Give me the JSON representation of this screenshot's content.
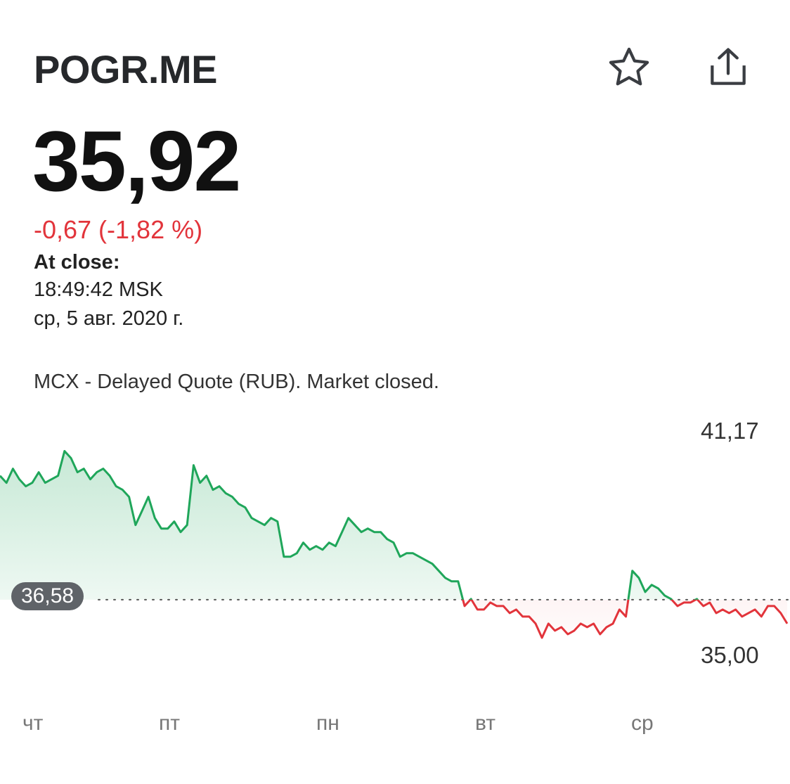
{
  "header": {
    "ticker": "POGR.ME",
    "star_icon": "star-outline-icon",
    "share_icon": "share-icon"
  },
  "quote": {
    "price": "35,92",
    "change": "-0,67 (-1,82 %)",
    "close_label": "At close:",
    "close_time": "18:49:42 MSK",
    "close_date": "ср, 5 авг. 2020 г.",
    "exchange_note": "MCX - Delayed Quote (RUB). Market closed."
  },
  "colors": {
    "up": "#1fa65a",
    "down": "#e2343b",
    "badge": "#5f6368"
  },
  "chart_data": {
    "type": "line",
    "y_max_label": "41,17",
    "y_min_label": "35,00",
    "previous_close_label": "36,58",
    "previous_close": 36.58,
    "ylim": [
      35.0,
      41.17
    ],
    "x_tick_labels": [
      "чт",
      "пт",
      "пн",
      "вт",
      "ср"
    ],
    "values": [
      40.1,
      39.9,
      40.3,
      40.0,
      39.8,
      39.9,
      40.2,
      39.9,
      40.0,
      40.1,
      40.8,
      40.6,
      40.2,
      40.3,
      40.0,
      40.2,
      40.3,
      40.1,
      39.8,
      39.7,
      39.5,
      38.7,
      39.1,
      39.5,
      38.9,
      38.6,
      38.6,
      38.8,
      38.5,
      38.7,
      40.4,
      39.9,
      40.1,
      39.7,
      39.8,
      39.6,
      39.5,
      39.3,
      39.2,
      38.9,
      38.8,
      38.7,
      38.9,
      38.8,
      37.8,
      37.8,
      37.9,
      38.2,
      38.0,
      38.1,
      38.0,
      38.2,
      38.1,
      38.5,
      38.9,
      38.7,
      38.5,
      38.6,
      38.5,
      38.5,
      38.3,
      38.2,
      37.8,
      37.9,
      37.9,
      37.8,
      37.7,
      37.6,
      37.4,
      37.2,
      37.1,
      37.1,
      36.4,
      36.6,
      36.3,
      36.3,
      36.5,
      36.4,
      36.4,
      36.2,
      36.3,
      36.1,
      36.1,
      35.9,
      35.5,
      35.9,
      35.7,
      35.8,
      35.6,
      35.7,
      35.9,
      35.8,
      35.9,
      35.6,
      35.8,
      35.9,
      36.3,
      36.1,
      37.4,
      37.2,
      36.8,
      37.0,
      36.9,
      36.7,
      36.6,
      36.4,
      36.5,
      36.5,
      36.6,
      36.4,
      36.5,
      36.2,
      36.3,
      36.2,
      36.3,
      36.1,
      36.2,
      36.3,
      36.1,
      36.4,
      36.4,
      36.2,
      35.9
    ]
  }
}
